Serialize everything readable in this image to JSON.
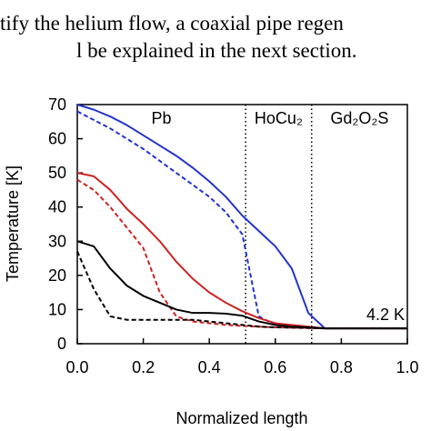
{
  "page_text": [
    "tify the helium flow, a coaxial pipe regen",
    "l be explained in the next section."
  ],
  "chart_data": {
    "type": "line",
    "xlabel": "Normalized length",
    "ylabel": "Temperature [K]",
    "x": [
      0,
      0.05,
      0.1,
      0.15,
      0.2,
      0.25,
      0.3,
      0.35,
      0.4,
      0.45,
      0.5,
      0.55,
      0.6,
      0.65,
      0.7,
      0.75,
      0.8,
      0.85,
      0.9,
      0.95,
      1.0
    ],
    "series": [
      {
        "color": "#2233cc",
        "dashed": false,
        "values": [
          70,
          68.5,
          66.5,
          64,
          61,
          58,
          55,
          51.5,
          47.5,
          43,
          37.5,
          33,
          28.5,
          22,
          9,
          4.5,
          4.5,
          4.5,
          4.5,
          4.5,
          4.5
        ]
      },
      {
        "color": "#2233cc",
        "dashed": true,
        "values": [
          68,
          65.5,
          63,
          60,
          57,
          53.5,
          50,
          46.5,
          43,
          38.5,
          32,
          8,
          5.5,
          5,
          4.8,
          4.5,
          4.5,
          4.5,
          4.5,
          4.5,
          4.5
        ]
      },
      {
        "color": "#cc2222",
        "dashed": false,
        "values": [
          50,
          49,
          45,
          39.5,
          35,
          30,
          24,
          19,
          15,
          12,
          9.5,
          7.5,
          6,
          5.5,
          5,
          4.5,
          4.5,
          4.5,
          4.5,
          4.5,
          4.5
        ]
      },
      {
        "color": "#cc2222",
        "dashed": true,
        "values": [
          48,
          45,
          40,
          34,
          28,
          15,
          8,
          6.5,
          6,
          5.5,
          5.2,
          5,
          4.8,
          4.7,
          4.6,
          4.5,
          4.5,
          4.5,
          4.5,
          4.5,
          4.5
        ]
      },
      {
        "color": "#000000",
        "dashed": false,
        "values": [
          30,
          28.5,
          22,
          17,
          14,
          12,
          10,
          9,
          9,
          8.8,
          8.2,
          6.5,
          5.5,
          5,
          4.8,
          4.5,
          4.5,
          4.5,
          4.5,
          4.5,
          4.5
        ]
      },
      {
        "color": "#000000",
        "dashed": true,
        "values": [
          27,
          16,
          8,
          7,
          7,
          7,
          7,
          7,
          6.5,
          6,
          5.5,
          5,
          4.8,
          4.7,
          4.6,
          4.5,
          4.5,
          4.5,
          4.5,
          4.5,
          4.5
        ]
      }
    ],
    "xlim": [
      0,
      1.0
    ],
    "ylim": [
      0,
      70
    ],
    "xticks": [
      {
        "value": 0,
        "label": "0.0"
      },
      0.2,
      0.4,
      0.6,
      0.8,
      {
        "value": 1,
        "label": "1.0"
      }
    ],
    "yticks": [
      0,
      10,
      20,
      30,
      40,
      50,
      60,
      70
    ],
    "region_boundaries": [
      0.51,
      0.71
    ],
    "region_labels": [
      "Pb",
      "HoCu₂",
      "Gd₂O₂S"
    ],
    "annotation": "4.2 K"
  }
}
